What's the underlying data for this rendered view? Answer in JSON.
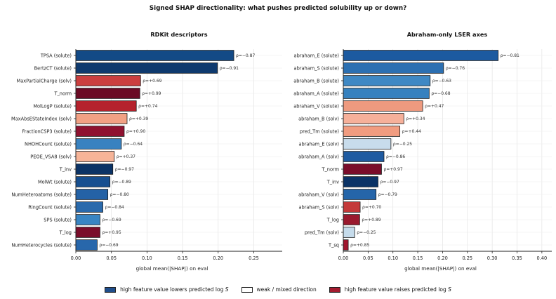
{
  "figure_title": "Signed SHAP directionality: what pushes predicted solubility up or down?",
  "legend": {
    "items": [
      {
        "label": "high feature value lowers predicted log",
        "math": "S",
        "color": "#1f4e8c"
      },
      {
        "label": "weak / mixed direction",
        "math": "",
        "color": "#ffffff"
      },
      {
        "label": "high feature value raises predicted log",
        "math": "S",
        "color": "#a51c30"
      }
    ]
  },
  "chart_data": [
    {
      "type": "bar",
      "orientation": "horizontal",
      "title": "RDKit descriptors",
      "xlabel": "global mean(|SHAP|) on eval",
      "ylabel": "",
      "xlim": [
        0,
        0.29
      ],
      "xticks": [
        "0.00",
        "0.05",
        "0.10",
        "0.15",
        "0.20",
        "0.25"
      ],
      "grid": true,
      "categories": [
        "TPSA  (solute)",
        "BertzCT  (solute)",
        "MaxPartialCharge  (solv)",
        "T_norm",
        "MolLogP  (solute)",
        "MaxAbsEStateIndex  (solv)",
        "FractionCSP3  (solute)",
        "NHOHCount  (solute)",
        "PEOE_VSA8  (solv)",
        "T_inv",
        "MolWt  (solute)",
        "NumHeteroatoms  (solute)",
        "RingCount  (solute)",
        "SPS  (solute)",
        "T_log",
        "NumHeterocycles  (solute)"
      ],
      "values": [
        0.222,
        0.199,
        0.091,
        0.09,
        0.085,
        0.072,
        0.068,
        0.064,
        0.054,
        0.052,
        0.048,
        0.045,
        0.038,
        0.034,
        0.034,
        0.03
      ],
      "annotations": [
        "ρ=−0.87",
        "ρ=−0.91",
        "ρ=+0.69",
        "ρ=+0.99",
        "ρ=+0.74",
        "ρ=+0.39",
        "ρ=+0.90",
        "ρ=−0.64",
        "ρ=+0.37",
        "ρ=−0.97",
        "ρ=−0.89",
        "ρ=−0.80",
        "ρ=−0.84",
        "ρ=−0.69",
        "ρ=+0.95",
        "ρ=−0.69"
      ],
      "colors": [
        "#134a86",
        "#0f3a6e",
        "#cb3f3f",
        "#6b0a24",
        "#b5222d",
        "#f2a184",
        "#8f1230",
        "#3982c0",
        "#f6b498",
        "#0b3366",
        "#174f90",
        "#2462a6",
        "#2a6aac",
        "#3985c3",
        "#7a0d2a",
        "#2867ab"
      ]
    },
    {
      "type": "bar",
      "orientation": "horizontal",
      "title": "Abraham-only LSER axes",
      "xlabel": "global mean(|SHAP|) on eval",
      "ylabel": "",
      "xlim": [
        0,
        0.42
      ],
      "xticks": [
        "0.00",
        "0.05",
        "0.10",
        "0.15",
        "0.20",
        "0.25",
        "0.30",
        "0.35",
        "0.40"
      ],
      "grid": true,
      "categories": [
        "abraham_E  (solute)",
        "abraham_S  (solute)",
        "abraham_B  (solute)",
        "abraham_A  (solute)",
        "abraham_V  (solute)",
        "abraham_B  (solv)",
        "pred_Tm  (solute)",
        "abraham_E  (solv)",
        "abraham_A  (solv)",
        "T_norm",
        "T_inv",
        "abraham_V  (solv)",
        "abraham_S  (solv)",
        "T_log",
        "pred_Tm  (solv)",
        "T_sq"
      ],
      "values": [
        0.312,
        0.202,
        0.175,
        0.173,
        0.16,
        0.122,
        0.114,
        0.096,
        0.082,
        0.077,
        0.07,
        0.066,
        0.034,
        0.033,
        0.023,
        0.01
      ],
      "annotations": [
        "ρ=−0.81",
        "ρ=−0.76",
        "ρ=−0.63",
        "ρ=−0.68",
        "ρ=+0.47",
        "ρ=+0.34",
        "ρ=+0.44",
        "ρ=−0.25",
        "ρ=−0.86",
        "ρ=+0.97",
        "ρ=−0.97",
        "ρ=−0.79",
        "ρ=+0.70",
        "ρ=+0.89",
        "ρ=−0.25",
        "ρ=+0.85"
      ],
      "colors": [
        "#1c5aa0",
        "#2c70b2",
        "#3f88c4",
        "#3681bf",
        "#ee9a7f",
        "#f6b09a",
        "#f19c80",
        "#c8dcec",
        "#1f5ba1",
        "#7a0d2a",
        "#0b3366",
        "#2565a9",
        "#c43a3a",
        "#9a1a2e",
        "#c5dbeb",
        "#a0162e"
      ]
    }
  ]
}
